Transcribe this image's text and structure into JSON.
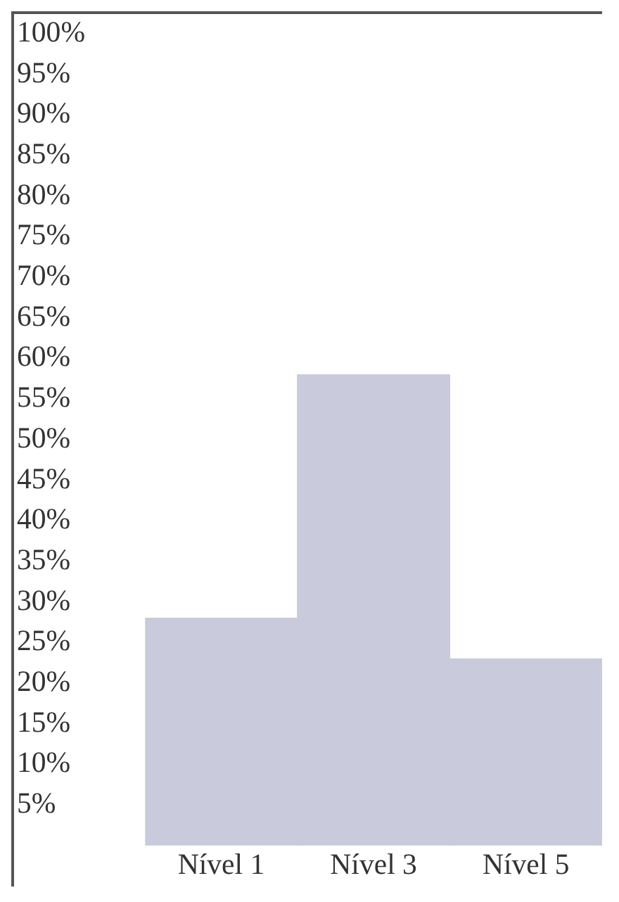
{
  "chart_data": {
    "type": "bar",
    "categories": [
      "Nível 1",
      "Nível 3",
      "Nível 5"
    ],
    "values": [
      28,
      58,
      23
    ],
    "color": "#c9cbdc",
    "ylim": [
      0,
      100
    ],
    "yticks": [
      {
        "value": 5,
        "label": "5%"
      },
      {
        "value": 10,
        "label": "10%"
      },
      {
        "value": 15,
        "label": "15%"
      },
      {
        "value": 20,
        "label": "20%"
      },
      {
        "value": 25,
        "label": "25%"
      },
      {
        "value": 30,
        "label": "30%"
      },
      {
        "value": 35,
        "label": "35%"
      },
      {
        "value": 40,
        "label": "40%"
      },
      {
        "value": 45,
        "label": "45%"
      },
      {
        "value": 50,
        "label": "50%"
      },
      {
        "value": 55,
        "label": "55%"
      },
      {
        "value": 60,
        "label": "60%"
      },
      {
        "value": 65,
        "label": "65%"
      },
      {
        "value": 70,
        "label": "70%"
      },
      {
        "value": 75,
        "label": "75%"
      },
      {
        "value": 80,
        "label": "80%"
      },
      {
        "value": 85,
        "label": "85%"
      },
      {
        "value": 90,
        "label": "90%"
      },
      {
        "value": 95,
        "label": "95%"
      },
      {
        "value": 100,
        "label": "100%"
      }
    ],
    "grid": false,
    "legend": false
  }
}
